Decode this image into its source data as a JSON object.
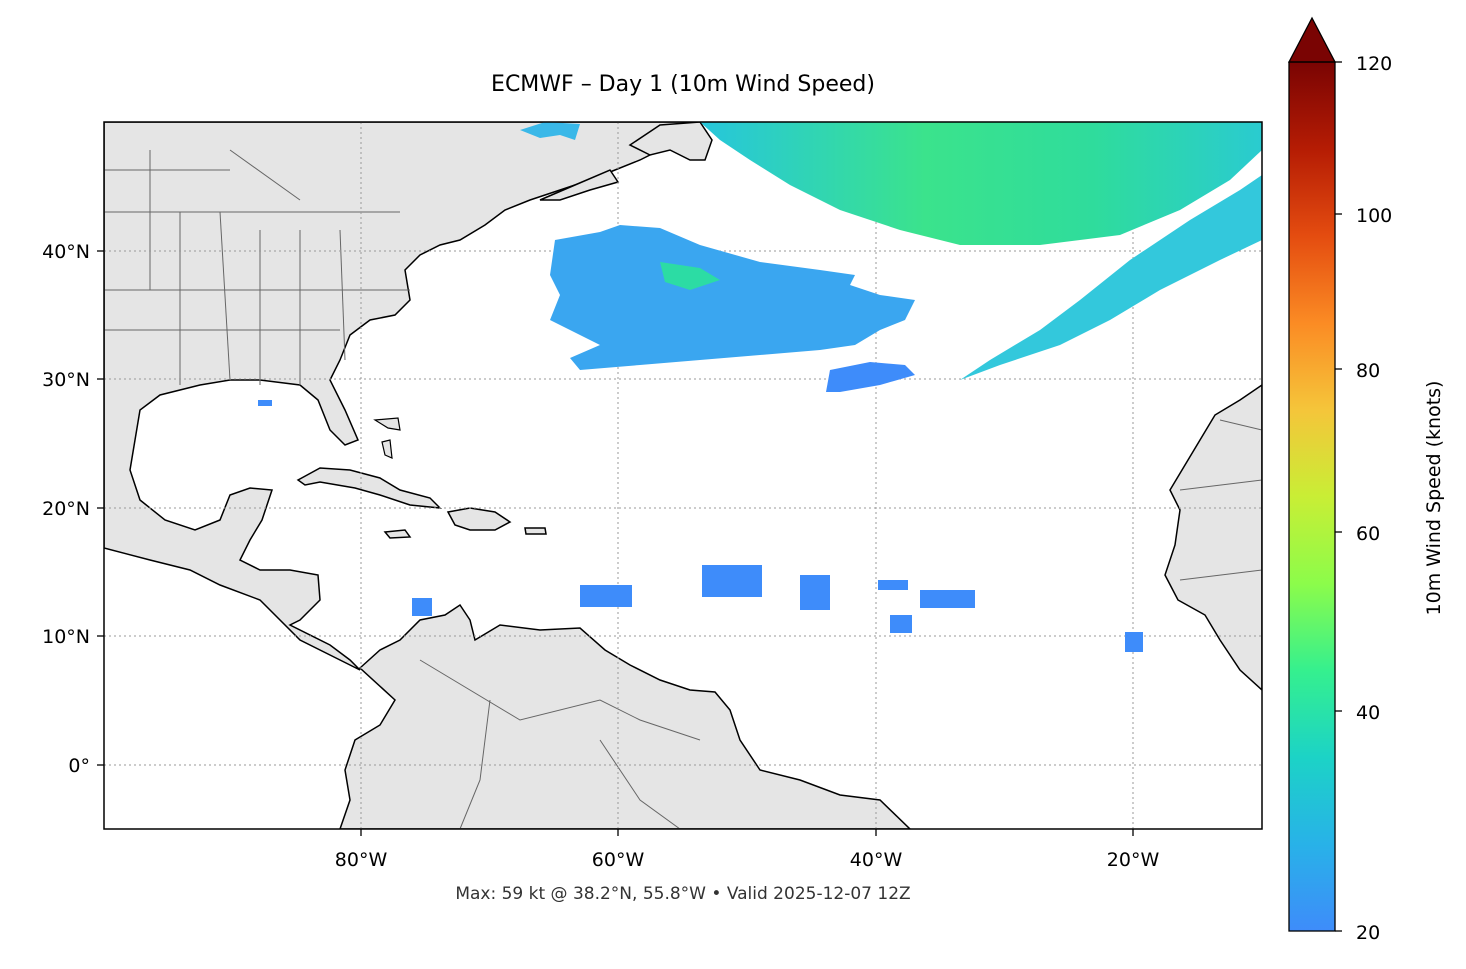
{
  "title": "ECMWF – Day 1 (10m Wind Speed)",
  "footer": "Max: 59 kt @ 38.2°N, 55.8°W • Valid 2025-12-07 12Z",
  "map": {
    "extent": {
      "lon": [
        -100,
        -10
      ],
      "lat": [
        -5,
        50
      ]
    },
    "x_ticks": [
      "80°W",
      "60°W",
      "40°W",
      "20°W"
    ],
    "y_ticks": [
      "40°N",
      "30°N",
      "20°N",
      "10°N",
      "0°"
    ],
    "land_color": "#e5e5e5",
    "ocean_color": "#ffffff",
    "gridlines": "dotted"
  },
  "colorbar": {
    "label": "10m Wind Speed (knots)",
    "ticks": [
      "120",
      "100",
      "80",
      "60",
      "40",
      "20"
    ],
    "range": [
      20,
      120
    ],
    "extend": "max",
    "cmap": "turbo",
    "over_color": "#7a0403"
  },
  "max_point": {
    "value_kt": 59,
    "lat": 38.2,
    "lon": -55.8
  }
}
